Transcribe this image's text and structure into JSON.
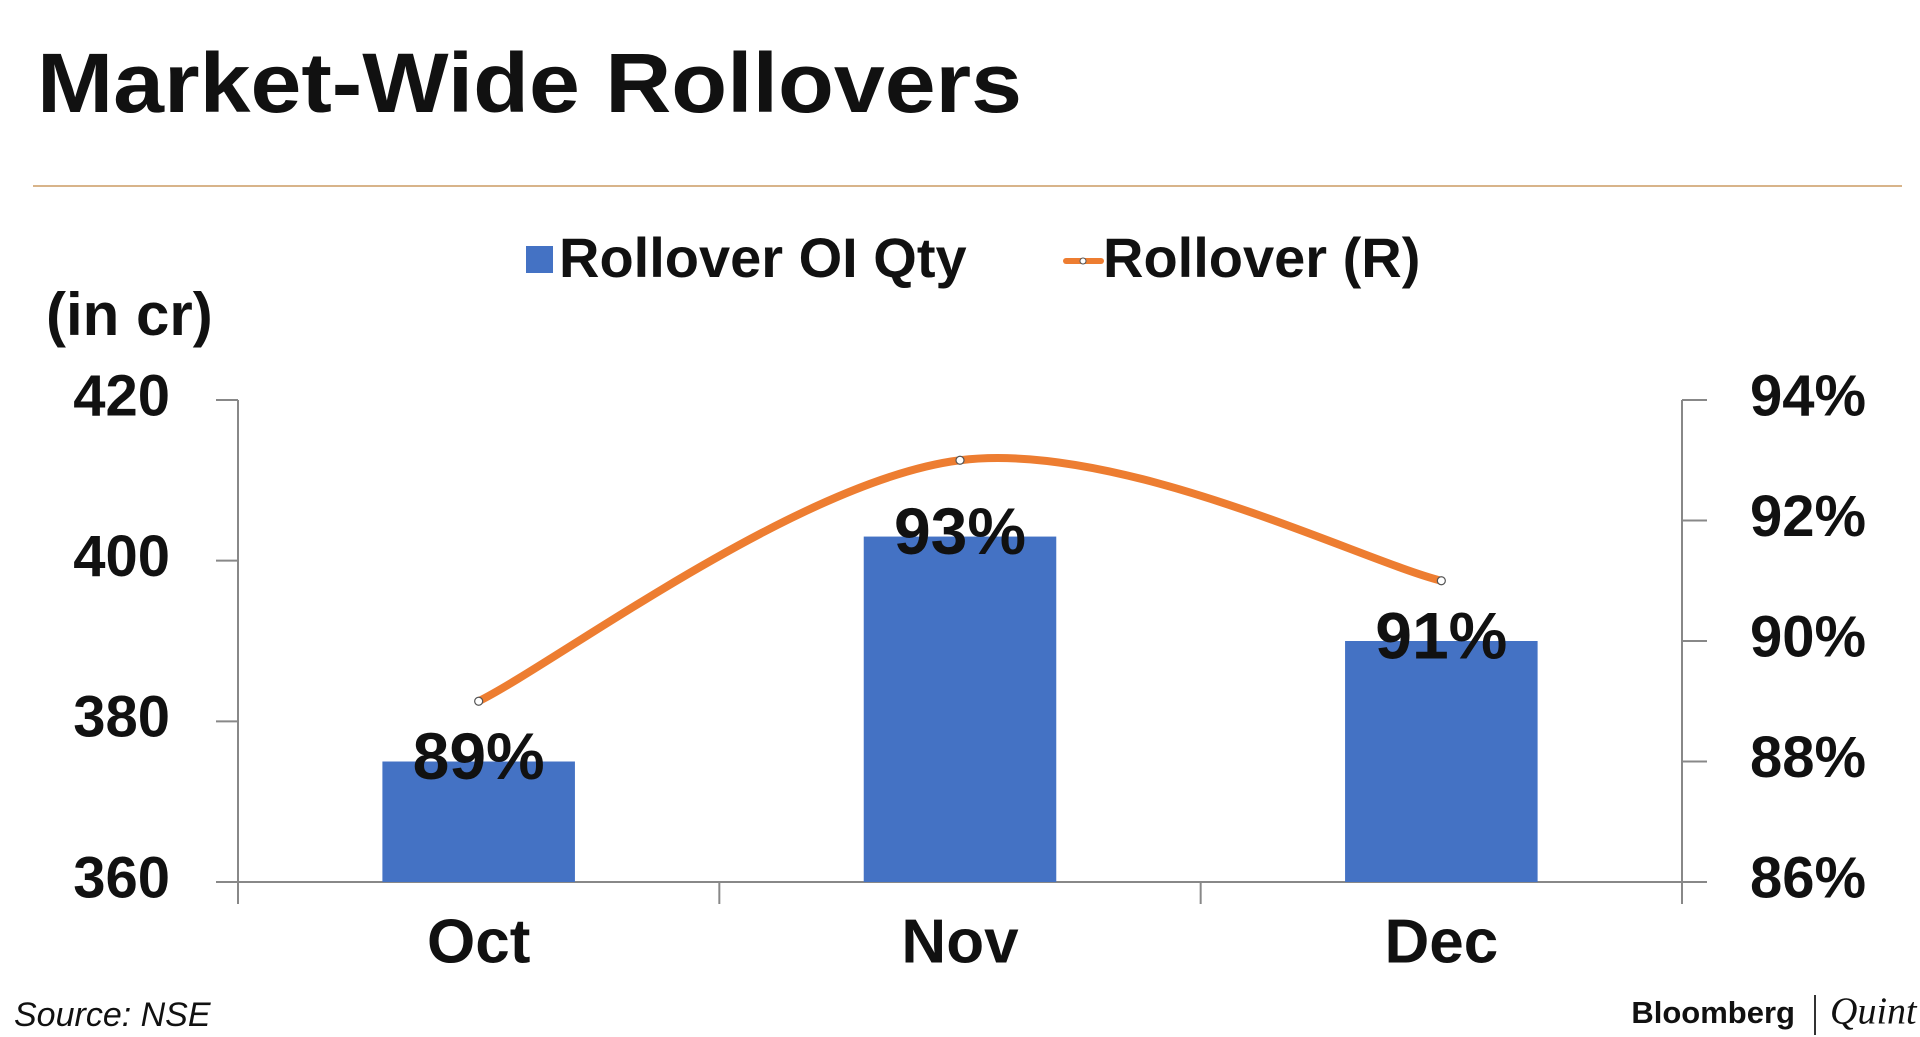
{
  "title": "Market-Wide Rollovers",
  "chart_data": {
    "type": "bar-line",
    "y_label": "(in cr)",
    "categories": [
      "Oct",
      "Nov",
      "Dec"
    ],
    "series": [
      {
        "name": "Rollover OI Qty",
        "type": "bar",
        "color": "#4472c4",
        "values": [
          375,
          403,
          390
        ]
      },
      {
        "name": "Rollover (R)",
        "type": "line",
        "axis": "y2",
        "color": "#ed7d31",
        "values": [
          89,
          93,
          91
        ],
        "value_labels": [
          "89%",
          "93%",
          "91%"
        ]
      }
    ],
    "ylim": [
      360,
      420
    ],
    "yticks": [
      360,
      380,
      400,
      420
    ],
    "y2lim": [
      86,
      94
    ],
    "y2ticks": [
      {
        "value": 86,
        "label": "86%"
      },
      {
        "value": 88,
        "label": "88%"
      },
      {
        "value": 90,
        "label": "90%"
      },
      {
        "value": 92,
        "label": "92%"
      },
      {
        "value": 94,
        "label": "94%"
      }
    ],
    "legend": "top"
  },
  "footer": {
    "source": "Source: NSE",
    "brand": "Bloomberg",
    "brand_sub": "Quint"
  }
}
